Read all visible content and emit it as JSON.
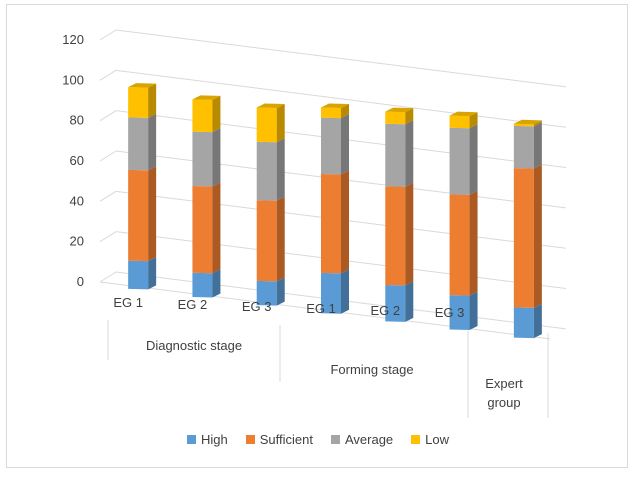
{
  "chart_data": {
    "type": "bar",
    "stacked": true,
    "three_d": true,
    "categories": [
      "EG 1",
      "EG 2",
      "EG 3",
      "EG 1",
      "EG 2",
      "EG 3",
      "Expert group"
    ],
    "groups": [
      {
        "label": "Diagnostic stage",
        "categories": [
          "EG 1",
          "EG 2",
          "EG 3"
        ]
      },
      {
        "label": "Forming stage",
        "categories": [
          "EG 1",
          "EG 2",
          "EG 3"
        ]
      },
      {
        "label": "Expert group",
        "categories": [
          "Expert group"
        ]
      }
    ],
    "series": [
      {
        "name": "High",
        "color": "#5b9bd5",
        "values": [
          14,
          12,
          12,
          20,
          18,
          17,
          15
        ]
      },
      {
        "name": "Sufficient",
        "color": "#ed7d31",
        "values": [
          45,
          43,
          40,
          49,
          49,
          50,
          69
        ]
      },
      {
        "name": "Average",
        "color": "#a5a5a5",
        "values": [
          26,
          27,
          29,
          28,
          31,
          33,
          21
        ]
      },
      {
        "name": "Low",
        "color": "#ffc000",
        "values": [
          15,
          16,
          17,
          5,
          6,
          6,
          1
        ]
      }
    ],
    "yticks": [
      0,
      20,
      40,
      60,
      80,
      100,
      120
    ],
    "ylim": [
      0,
      120
    ],
    "grid": true,
    "legend_position": "bottom"
  },
  "legend": {
    "items": [
      {
        "label": "High",
        "color": "#5b9bd5"
      },
      {
        "label": "Sufficient",
        "color": "#ed7d31"
      },
      {
        "label": "Average",
        "color": "#a5a5a5"
      },
      {
        "label": "Low",
        "color": "#ffc000"
      }
    ]
  }
}
